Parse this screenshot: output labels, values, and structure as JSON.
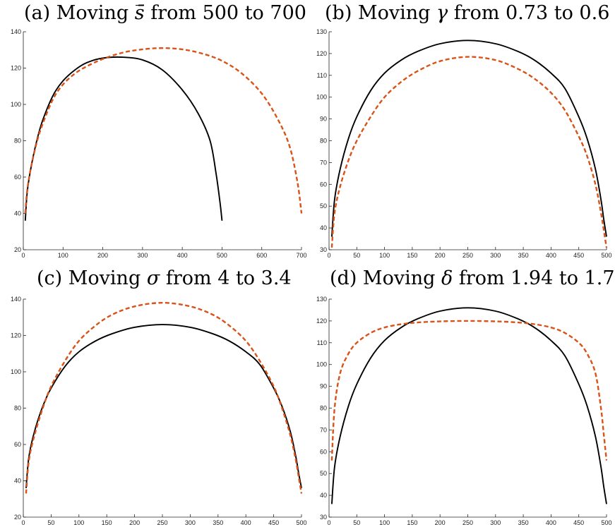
{
  "chart_data": [
    {
      "type": "line",
      "title": {
        "prefix": "(a) Moving ",
        "symbol": "s̄",
        "suffix": " from 500 to 700"
      },
      "xlim": [
        0,
        700
      ],
      "ylim": [
        20,
        140
      ],
      "xticks": [
        0,
        100,
        200,
        300,
        400,
        500,
        600,
        700
      ],
      "yticks": [
        20,
        40,
        60,
        80,
        100,
        120,
        140
      ],
      "series": [
        {
          "style": "solid",
          "color": "#000000",
          "x": [
            5,
            10,
            20,
            35,
            50,
            75,
            100,
            130,
            160,
            200,
            250,
            300,
            350,
            400,
            440,
            470,
            485,
            495,
            500
          ],
          "y": [
            36,
            52,
            66,
            81,
            92,
            105,
            113,
            119,
            123,
            125.5,
            126,
            124.5,
            119,
            108,
            95,
            80,
            62,
            46,
            36
          ]
        },
        {
          "style": "dashed",
          "color": "#d95319",
          "x": [
            5,
            10,
            20,
            35,
            50,
            75,
            100,
            130,
            160,
            200,
            250,
            300,
            350,
            400,
            450,
            500,
            550,
            600,
            640,
            670,
            690,
            700
          ],
          "y": [
            40,
            53,
            66,
            80,
            90,
            103,
            111,
            117,
            121,
            125,
            128.5,
            130.3,
            131,
            130.3,
            128,
            124,
            117,
            106,
            92,
            77,
            57,
            40
          ]
        }
      ]
    },
    {
      "type": "line",
      "title": {
        "prefix": "(b) Moving ",
        "symbol": "γ",
        "suffix": " from 0.73 to 0.6"
      },
      "xlim": [
        0,
        500
      ],
      "ylim": [
        30,
        130
      ],
      "xticks": [
        0,
        50,
        100,
        150,
        200,
        250,
        300,
        350,
        400,
        450,
        500
      ],
      "yticks": [
        30,
        40,
        50,
        60,
        70,
        80,
        90,
        100,
        110,
        120,
        130
      ],
      "series": [
        {
          "style": "solid",
          "color": "#000000",
          "x": [
            5,
            10,
            20,
            35,
            50,
            75,
            100,
            130,
            160,
            200,
            250,
            300,
            340,
            370,
            400,
            425,
            450,
            465,
            480,
            490,
            495,
            500
          ],
          "y": [
            36,
            53,
            67,
            81,
            91,
            103,
            111,
            117,
            121,
            124.5,
            126,
            124.5,
            121,
            117,
            111,
            104,
            91,
            81,
            67,
            53,
            44,
            36
          ]
        },
        {
          "style": "dashed",
          "color": "#d95319",
          "x": [
            5,
            10,
            20,
            35,
            50,
            75,
            100,
            130,
            160,
            200,
            250,
            300,
            340,
            370,
            400,
            425,
            450,
            465,
            480,
            490,
            495,
            500
          ],
          "y": [
            31,
            47,
            59,
            71,
            80,
            91,
            100,
            107,
            112,
            116.5,
            118.5,
            117,
            113,
            108.5,
            102,
            94,
            82,
            73,
            60,
            47,
            39,
            31
          ]
        }
      ]
    },
    {
      "type": "line",
      "title": {
        "prefix": "(c) Moving ",
        "symbol": "σ",
        "suffix": " from 4 to 3.4"
      },
      "xlim": [
        0,
        500
      ],
      "ylim": [
        20,
        140
      ],
      "xticks": [
        0,
        50,
        100,
        150,
        200,
        250,
        300,
        350,
        400,
        450,
        500
      ],
      "yticks": [
        20,
        40,
        60,
        80,
        100,
        120,
        140
      ],
      "series": [
        {
          "style": "solid",
          "color": "#000000",
          "x": [
            5,
            10,
            20,
            35,
            50,
            75,
            100,
            130,
            160,
            200,
            250,
            300,
            340,
            370,
            400,
            425,
            450,
            465,
            480,
            490,
            495,
            500
          ],
          "y": [
            36,
            53,
            67,
            81,
            91,
            103,
            111,
            117,
            121,
            124.5,
            126,
            124.5,
            121,
            117,
            111,
            104,
            91,
            81,
            67,
            53,
            44,
            36
          ]
        },
        {
          "style": "dashed",
          "color": "#d95319",
          "x": [
            5,
            10,
            20,
            35,
            50,
            75,
            100,
            130,
            160,
            200,
            250,
            300,
            340,
            370,
            400,
            425,
            450,
            465,
            480,
            490,
            495,
            500
          ],
          "y": [
            33,
            51,
            65,
            80,
            92,
            106,
            117,
            125.5,
            131.5,
            136,
            138,
            136,
            131.5,
            125.5,
            117,
            106,
            92,
            80,
            65,
            51,
            42,
            33
          ]
        }
      ]
    },
    {
      "type": "line",
      "title": {
        "prefix": "(d) Moving ",
        "symbol": "δ",
        "suffix": " from 1.94 to 1.7"
      },
      "xlim": [
        0,
        500
      ],
      "ylim": [
        30,
        130
      ],
      "xticks": [
        0,
        50,
        100,
        150,
        200,
        250,
        300,
        350,
        400,
        450,
        500
      ],
      "yticks": [
        30,
        40,
        50,
        60,
        70,
        80,
        90,
        100,
        110,
        120,
        130
      ],
      "series": [
        {
          "style": "solid",
          "color": "#000000",
          "x": [
            5,
            10,
            20,
            35,
            50,
            75,
            100,
            130,
            160,
            200,
            250,
            300,
            340,
            370,
            400,
            425,
            450,
            465,
            480,
            490,
            495,
            500
          ],
          "y": [
            36,
            53,
            67,
            81,
            91,
            103,
            111,
            117,
            121,
            124.5,
            126,
            124.5,
            121,
            117,
            111,
            104,
            91,
            81,
            67,
            53,
            44,
            36
          ]
        },
        {
          "style": "dashed",
          "color": "#d95319",
          "x": [
            5,
            10,
            20,
            35,
            50,
            75,
            100,
            130,
            160,
            200,
            250,
            300,
            340,
            370,
            400,
            425,
            450,
            465,
            480,
            490,
            495,
            500
          ],
          "y": [
            56,
            80,
            96,
            105,
            110,
            114.5,
            117,
            118.5,
            119.3,
            119.8,
            120,
            119.8,
            119.3,
            118.5,
            117,
            114.5,
            110,
            105,
            96,
            80,
            68,
            56
          ]
        }
      ]
    }
  ]
}
